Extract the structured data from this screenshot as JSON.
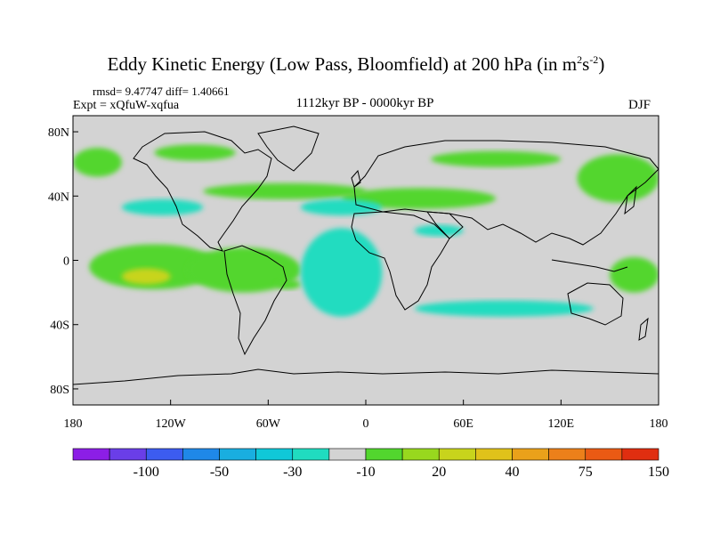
{
  "chart_data": {
    "type": "heatmap",
    "title": "Eddy Kinetic Energy (Low Pass, Bloomfield) at 200 hPa (in m",
    "title_units_sup1": "2",
    "title_units_mid": "s",
    "title_units_sup2": "-2",
    "title_end": ")",
    "stats": "rmsd= 9.47747 diff= 1.40661",
    "experiment": "Expt = xQfuW-xqfua",
    "period": "1112kyr BP - 0000kyr BP",
    "season": "DJF",
    "y_ticks": [
      "80N",
      "40N",
      "0",
      "40S",
      "80S"
    ],
    "x_ticks": [
      "180",
      "120W",
      "60W",
      "0",
      "60E",
      "120E",
      "180"
    ],
    "xlim": [
      -180,
      180
    ],
    "ylim": [
      -90,
      90
    ],
    "colorbar": {
      "colors": [
        "#8c1ee6",
        "#6a3ee8",
        "#3c5cf0",
        "#1f88e8",
        "#19aee0",
        "#10c8d8",
        "#20dcc0",
        "#d3d3d3",
        "#52d62e",
        "#98d81e",
        "#c8d41c",
        "#e0c21a",
        "#eaa11a",
        "#ec801a",
        "#ea5a14",
        "#e02e10"
      ],
      "labels": [
        "-100",
        "-50",
        "-30",
        "-10",
        "20",
        "40",
        "75",
        "150"
      ]
    },
    "regions": [
      {
        "name": "north-pacific-positive",
        "value": 20,
        "lon": [
          -180,
          -150
        ],
        "lat": [
          52,
          70
        ]
      },
      {
        "name": "north-pacific-arctic-positive",
        "value": 20,
        "lon": [
          -130,
          -80
        ],
        "lat": [
          62,
          72
        ]
      },
      {
        "name": "north-atlantic-positive",
        "value": 20,
        "lon": [
          -100,
          0
        ],
        "lat": [
          38,
          48
        ]
      },
      {
        "name": "mediterranean-positive",
        "value": 20,
        "lon": [
          -15,
          80
        ],
        "lat": [
          32,
          45
        ]
      },
      {
        "name": "west-siberia-positive",
        "value": 20,
        "lon": [
          40,
          120
        ],
        "lat": [
          58,
          68
        ]
      },
      {
        "name": "north-east-asia-positive",
        "value": 20,
        "lon": [
          130,
          180
        ],
        "lat": [
          36,
          66
        ]
      },
      {
        "name": "east-pacific-positive",
        "value": 20,
        "lon": [
          -170,
          -90
        ],
        "lat": [
          -18,
          10
        ]
      },
      {
        "name": "east-pacific-core",
        "value": 40,
        "lon": [
          -150,
          -120
        ],
        "lat": [
          -15,
          -5
        ]
      },
      {
        "name": "south-america-positive",
        "value": 20,
        "lon": [
          -110,
          -40
        ],
        "lat": [
          -20,
          8
        ]
      },
      {
        "name": "south-atlantic-positive",
        "value": 20,
        "lon": [
          -55,
          -40
        ],
        "lat": [
          -18,
          -12
        ]
      },
      {
        "name": "west-pacific-positive",
        "value": 20,
        "lon": [
          150,
          180
        ],
        "lat": [
          -20,
          2
        ]
      },
      {
        "name": "central-atlantic-negative",
        "value": -10,
        "lon": [
          -40,
          10
        ],
        "lat": [
          -35,
          20
        ]
      },
      {
        "name": "north-pacific-negative",
        "value": -10,
        "lon": [
          -150,
          -100
        ],
        "lat": [
          28,
          38
        ]
      },
      {
        "name": "north-atlantic-negative",
        "value": -10,
        "lon": [
          -40,
          10
        ],
        "lat": [
          28,
          38
        ]
      },
      {
        "name": "north-africa-negative",
        "value": -10,
        "lon": [
          30,
          60
        ],
        "lat": [
          15,
          22
        ]
      },
      {
        "name": "south-indian-negative",
        "value": -10,
        "lon": [
          30,
          140
        ],
        "lat": [
          -35,
          -25
        ]
      }
    ]
  }
}
